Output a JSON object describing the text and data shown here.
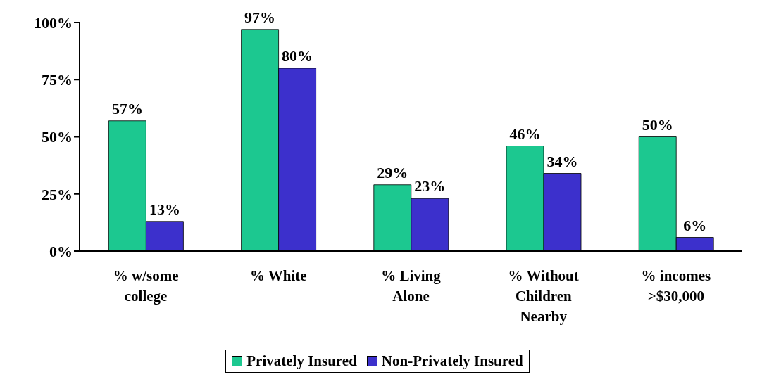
{
  "chart_data": {
    "type": "bar",
    "categories": [
      "% w/some college",
      "% White",
      "% Living Alone",
      "% Without Children Nearby",
      "% incomes >$30,000"
    ],
    "series": [
      {
        "name": "Privately Insured",
        "color": "#1cc890",
        "values": [
          57,
          97,
          29,
          46,
          50
        ],
        "value_labels": [
          "57%",
          "97%",
          "29%",
          "46%",
          "50%"
        ]
      },
      {
        "name": "Non-Privately Insured",
        "color": "#3c30cc",
        "values": [
          13,
          80,
          23,
          34,
          6
        ],
        "value_labels": [
          "13%",
          "80%",
          "23%",
          "34%",
          "6%"
        ]
      }
    ],
    "ylim": [
      0,
      100
    ],
    "yticks": [
      {
        "value": 0,
        "label": "0%"
      },
      {
        "value": 25,
        "label": "25%"
      },
      {
        "value": 50,
        "label": "50%"
      },
      {
        "value": 75,
        "label": "75%"
      },
      {
        "value": 100,
        "label": "100%"
      }
    ],
    "grid": false,
    "legend": "bottom"
  }
}
